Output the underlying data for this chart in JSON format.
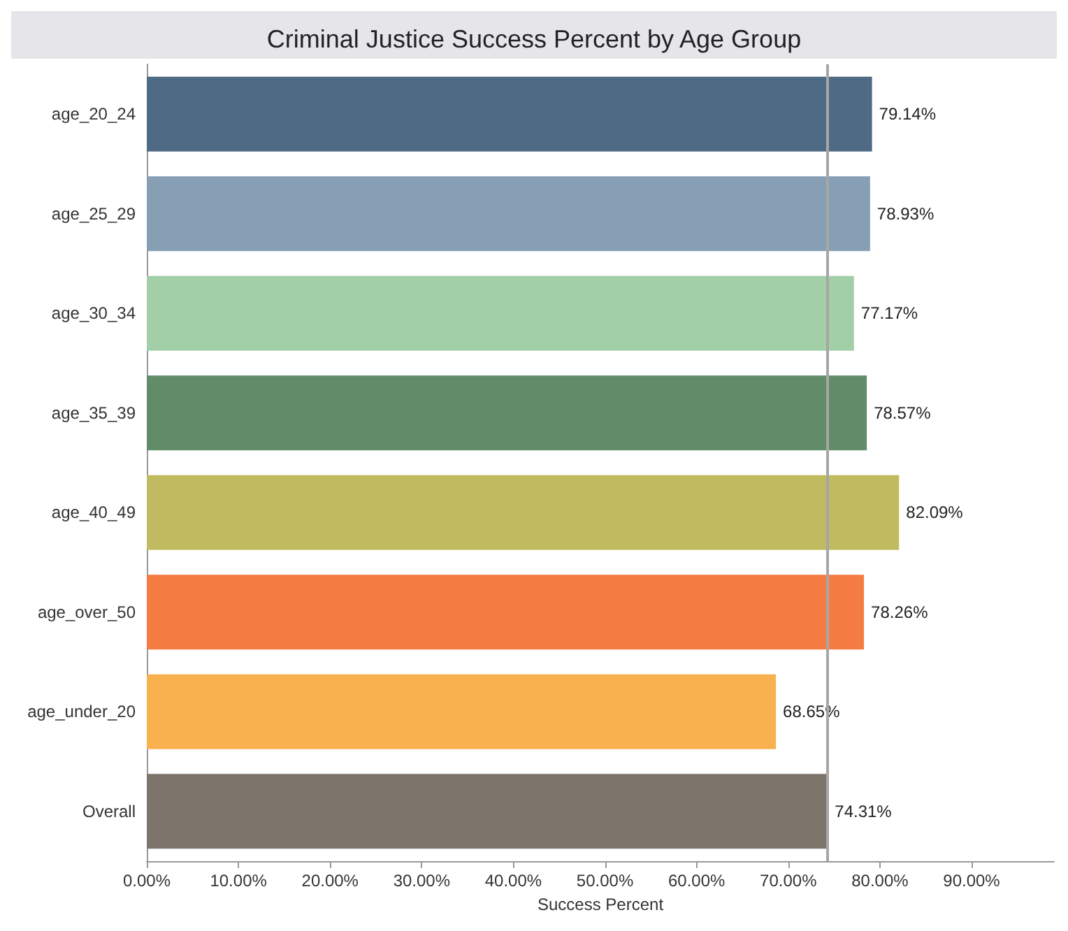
{
  "chart_data": {
    "type": "bar",
    "orientation": "horizontal",
    "title": "Criminal Justice Success Percent by Age Group",
    "xlabel": "Success Percent",
    "categories": [
      "age_20_24",
      "age_25_29",
      "age_30_34",
      "age_35_39",
      "age_40_49",
      "age_over_50",
      "age_under_20",
      "Overall"
    ],
    "values": [
      79.14,
      78.93,
      77.17,
      78.57,
      82.09,
      78.26,
      68.65,
      74.31
    ],
    "colors": [
      "#4e6a84",
      "#879fb5",
      "#a3cfa8",
      "#628c68",
      "#c0bb60",
      "#f47c42",
      "#f9b04e",
      "#7d756c"
    ],
    "value_labels": [
      "79.14%",
      "78.93%",
      "77.17%",
      "78.57%",
      "82.09%",
      "78.26%",
      "68.65%",
      "74.31%"
    ],
    "xlim": [
      0,
      99
    ],
    "xticks": [
      {
        "value": 0,
        "label": "0.00%"
      },
      {
        "value": 10,
        "label": "10.00%"
      },
      {
        "value": 20,
        "label": "20.00%"
      },
      {
        "value": 30,
        "label": "30.00%"
      },
      {
        "value": 40,
        "label": "40.00%"
      },
      {
        "value": 50,
        "label": "50.00%"
      },
      {
        "value": 60,
        "label": "60.00%"
      },
      {
        "value": 70,
        "label": "70.00%"
      },
      {
        "value": 80,
        "label": "80.00%"
      },
      {
        "value": 90,
        "label": "90.00%"
      }
    ],
    "ref_lines": [
      {
        "axis": "x",
        "value": 74.31,
        "color": "#a6a6a6"
      }
    ]
  }
}
